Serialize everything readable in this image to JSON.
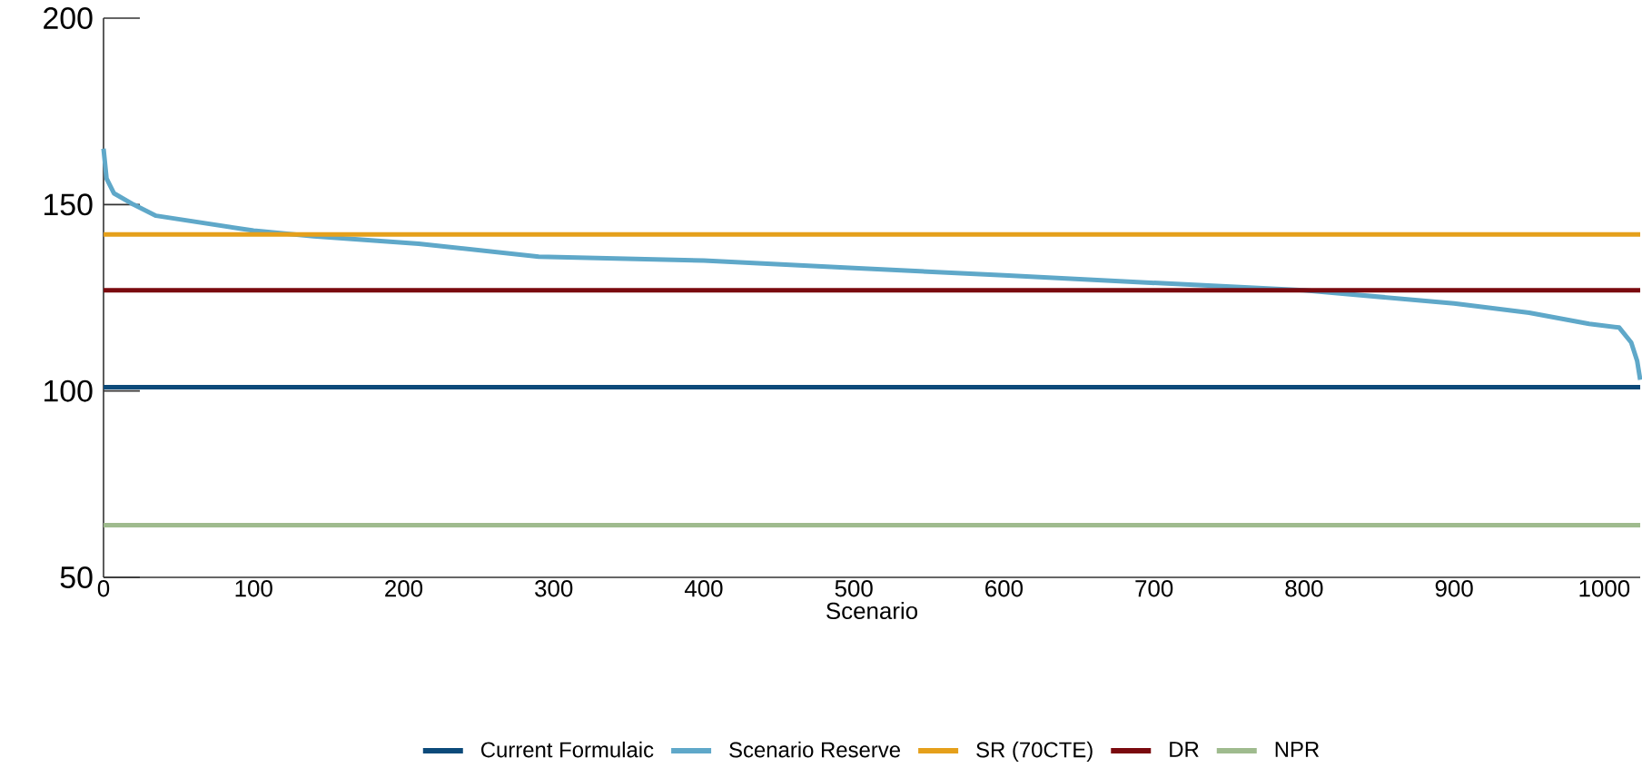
{
  "chart_data": {
    "type": "line",
    "xlabel": "Scenario",
    "xlim": [
      0,
      1024
    ],
    "ylim": [
      50,
      200
    ],
    "xticks": [
      0,
      100,
      200,
      300,
      400,
      500,
      600,
      700,
      800,
      900,
      1000
    ],
    "yticks": [
      50,
      100,
      150,
      200
    ],
    "grid": false,
    "legend": "bottom",
    "marker": "none",
    "line_style": "solid",
    "series": [
      {
        "name": "Current Formulaic",
        "color": "#0c4a7a",
        "x": [
          0,
          1024
        ],
        "values": [
          101,
          101
        ]
      },
      {
        "name": "Scenario Reserve",
        "color": "#5fa8c9",
        "x": [
          0,
          2,
          7,
          20,
          35,
          100,
          140,
          210,
          290,
          400,
          500,
          600,
          700,
          800,
          900,
          950,
          990,
          1010,
          1018,
          1022,
          1024
        ],
        "values": [
          165,
          157,
          153,
          150,
          147,
          143,
          141.5,
          139.5,
          136,
          135,
          133,
          131,
          129,
          127,
          123.5,
          121,
          118,
          117,
          113,
          108,
          103
        ]
      },
      {
        "name": "SR (70CTE)",
        "color": "#e5a01b",
        "x": [
          0,
          1024
        ],
        "values": [
          142,
          142
        ]
      },
      {
        "name": "DR",
        "color": "#7a0a0f",
        "x": [
          0,
          1024
        ],
        "values": [
          127,
          127
        ]
      },
      {
        "name": "NPR",
        "color": "#9fbb8e",
        "x": [
          0,
          1024
        ],
        "values": [
          64,
          64
        ]
      }
    ]
  }
}
